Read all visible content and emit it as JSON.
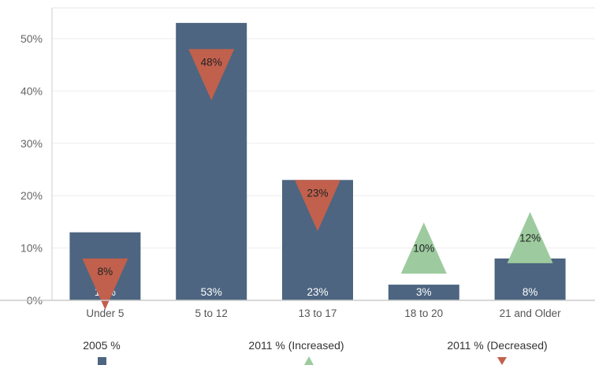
{
  "chart_data": {
    "type": "bar",
    "categories": [
      "Under 5",
      "5 to 12",
      "13 to 17",
      "18 to 20",
      "21 and Older"
    ],
    "ylim": [
      0,
      0.55
    ],
    "yticks": [
      {
        "value": 0,
        "label": "0%"
      },
      {
        "value": 0.1,
        "label": "10%"
      },
      {
        "value": 0.2,
        "label": "20%"
      },
      {
        "value": 0.3,
        "label": "30%"
      },
      {
        "value": 0.4,
        "label": "40%"
      },
      {
        "value": 0.5,
        "label": "50%"
      }
    ],
    "grid": true,
    "legend_position": "bottom",
    "series": [
      {
        "name": "2005 %",
        "type": "bar",
        "color": "#4d6580",
        "values": [
          0.13,
          0.53,
          0.23,
          0.03,
          0.08
        ],
        "labels": [
          "13%",
          "53%",
          "23%",
          "3%",
          "8%"
        ]
      },
      {
        "name": "2011 % (Increased)",
        "type": "marker",
        "marker": "triangle-up",
        "color": "#9dcb9f",
        "values": [
          null,
          null,
          null,
          0.1,
          0.12
        ],
        "labels": [
          null,
          null,
          null,
          "10%",
          "12%"
        ]
      },
      {
        "name": "2011 % (Decreased)",
        "type": "marker",
        "marker": "triangle-down",
        "color": "#c0604d",
        "values": [
          0.08,
          0.48,
          0.23,
          null,
          null
        ],
        "labels": [
          "8%",
          "48%",
          "23%",
          null,
          null
        ]
      }
    ]
  }
}
